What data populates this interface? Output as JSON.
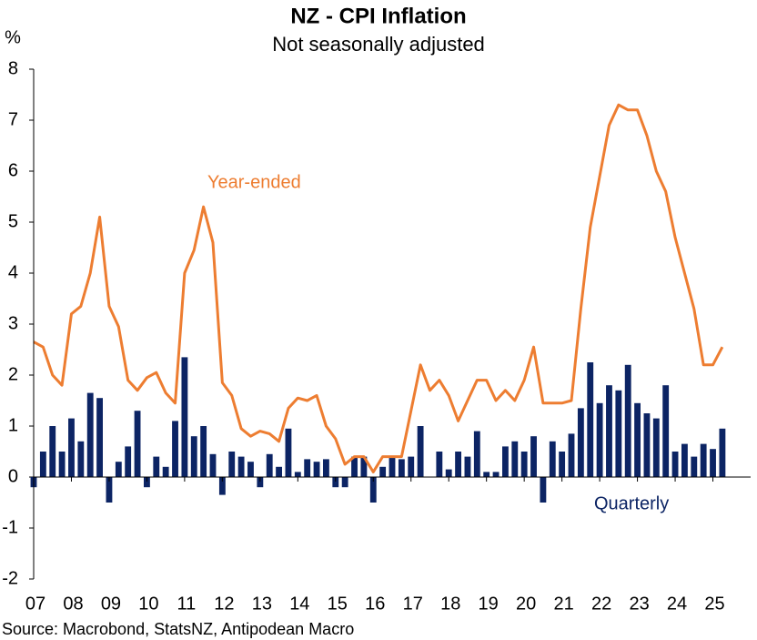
{
  "chart_data": {
    "type": "combo",
    "title": "NZ - CPI Inflation",
    "subtitle": "Not seasonally adjusted",
    "y_label": "%",
    "source": "Source: Macrobond, StatsNZ, Antipodean Macro",
    "x": [
      2007,
      2007.25,
      2007.5,
      2007.75,
      2008,
      2008.25,
      2008.5,
      2008.75,
      2009,
      2009.25,
      2009.5,
      2009.75,
      2010,
      2010.25,
      2010.5,
      2010.75,
      2011,
      2011.25,
      2011.5,
      2011.75,
      2012,
      2012.25,
      2012.5,
      2012.75,
      2013,
      2013.25,
      2013.5,
      2013.75,
      2014,
      2014.25,
      2014.5,
      2014.75,
      2015,
      2015.25,
      2015.5,
      2015.75,
      2016,
      2016.25,
      2016.5,
      2016.75,
      2017,
      2017.25,
      2017.5,
      2017.75,
      2018,
      2018.25,
      2018.5,
      2018.75,
      2019,
      2019.25,
      2019.5,
      2019.75,
      2020,
      2020.25,
      2020.5,
      2020.75,
      2021,
      2021.25,
      2021.5,
      2021.75,
      2022,
      2022.25,
      2022.5,
      2022.75,
      2023,
      2023.25,
      2023.5,
      2023.75,
      2024,
      2024.25,
      2024.5,
      2024.75,
      2025,
      2025.25
    ],
    "series": [
      {
        "name": "Quarterly",
        "type": "bar",
        "color": "#0c2464",
        "values": [
          -0.2,
          0.5,
          1.0,
          0.5,
          1.15,
          0.7,
          1.65,
          1.55,
          -0.5,
          0.3,
          0.6,
          1.3,
          -0.2,
          0.4,
          0.2,
          1.1,
          2.35,
          0.8,
          1.0,
          0.45,
          -0.35,
          0.5,
          0.4,
          0.3,
          -0.2,
          0.45,
          0.2,
          0.95,
          0.1,
          0.35,
          0.3,
          0.35,
          -0.2,
          -0.2,
          0.4,
          0.4,
          -0.5,
          0.2,
          0.4,
          0.35,
          0.4,
          1.0,
          0.0,
          0.5,
          0.15,
          0.5,
          0.4,
          0.9,
          0.1,
          0.1,
          0.6,
          0.7,
          0.5,
          0.8,
          -0.5,
          0.7,
          0.5,
          0.85,
          1.35,
          2.25,
          1.45,
          1.8,
          1.7,
          2.2,
          1.45,
          1.25,
          1.15,
          1.8,
          0.5,
          0.65,
          0.4,
          0.65,
          0.55,
          0.95
        ]
      },
      {
        "name": "Year-ended",
        "type": "line",
        "color": "#ed7d31",
        "values": [
          2.65,
          2.55,
          2.0,
          1.8,
          3.2,
          3.35,
          4.0,
          5.1,
          3.35,
          2.95,
          1.9,
          1.7,
          1.95,
          2.05,
          1.65,
          1.45,
          4.0,
          4.45,
          5.3,
          4.6,
          1.85,
          1.6,
          0.95,
          0.8,
          0.9,
          0.85,
          0.7,
          1.35,
          1.55,
          1.5,
          1.6,
          1.0,
          0.75,
          0.25,
          0.4,
          0.4,
          0.1,
          0.4,
          0.4,
          0.4,
          1.3,
          2.2,
          1.7,
          1.9,
          1.6,
          1.1,
          1.5,
          1.9,
          1.9,
          1.5,
          1.7,
          1.5,
          1.9,
          2.55,
          1.45,
          1.45,
          1.45,
          1.5,
          3.3,
          4.9,
          5.9,
          6.9,
          7.3,
          7.2,
          7.2,
          6.7,
          6.0,
          5.6,
          4.7,
          4.0,
          3.3,
          2.2,
          2.2,
          2.55
        ]
      }
    ],
    "xlim": [
      2007,
      2026
    ],
    "ylim": [
      -2,
      8
    ],
    "xticks": [
      {
        "value": 2007,
        "label": "07"
      },
      {
        "value": 2008,
        "label": "08"
      },
      {
        "value": 2009,
        "label": "09"
      },
      {
        "value": 2010,
        "label": "10"
      },
      {
        "value": 2011,
        "label": "11"
      },
      {
        "value": 2012,
        "label": "12"
      },
      {
        "value": 2013,
        "label": "13"
      },
      {
        "value": 2014,
        "label": "14"
      },
      {
        "value": 2015,
        "label": "15"
      },
      {
        "value": 2016,
        "label": "16"
      },
      {
        "value": 2017,
        "label": "17"
      },
      {
        "value": 2018,
        "label": "18"
      },
      {
        "value": 2019,
        "label": "19"
      },
      {
        "value": 2020,
        "label": "20"
      },
      {
        "value": 2021,
        "label": "21"
      },
      {
        "value": 2022,
        "label": "22"
      },
      {
        "value": 2023,
        "label": "23"
      },
      {
        "value": 2024,
        "label": "24"
      },
      {
        "value": 2025,
        "label": "25"
      }
    ],
    "yticks": [
      -2,
      -1,
      0,
      1,
      2,
      3,
      4,
      5,
      6,
      7,
      8
    ],
    "grid": false
  }
}
